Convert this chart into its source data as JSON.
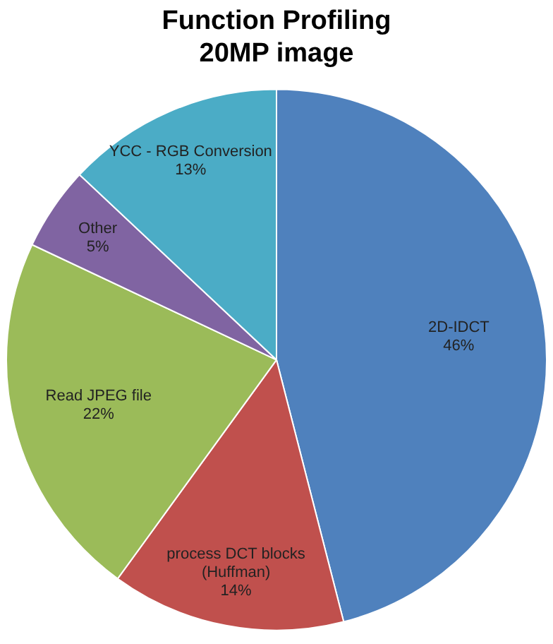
{
  "chart_data": {
    "type": "pie",
    "title": "Function Profiling\n20MP image",
    "categories": [
      "2D-IDCT",
      "process DCT blocks (Huffman)",
      "Read JPEG file",
      "Other",
      "YCC - RGB Conversion"
    ],
    "values": [
      46,
      14,
      22,
      5,
      13
    ],
    "colors": [
      "#4f81bd",
      "#c0504d",
      "#9bbb59",
      "#8064a2",
      "#4bacc6"
    ],
    "value_labels": [
      "46%",
      "14%",
      "22%",
      "5%",
      "13%"
    ],
    "legend": false
  }
}
